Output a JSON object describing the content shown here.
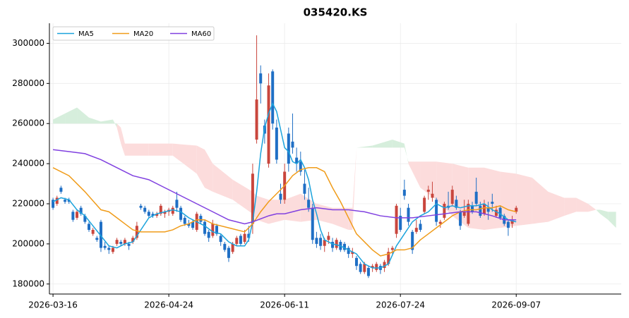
{
  "chart_data": {
    "type": "candlestick",
    "title": "035420.KS",
    "grid": true,
    "legend": "upper left",
    "xlim": [
      -0.9,
      142.3
    ],
    "xticks": [
      {
        "value": 0,
        "label": "2026-03-16"
      },
      {
        "value": 29,
        "label": "2026-04-24"
      },
      {
        "value": 58,
        "label": "2026-06-11"
      },
      {
        "value": 87,
        "label": "2026-07-24"
      },
      {
        "value": 116,
        "label": "2026-09-07"
      }
    ],
    "ylim": [
      175000,
      310000
    ],
    "yticks": [
      180000,
      200000,
      220000,
      240000,
      260000,
      280000,
      300000
    ],
    "up_color": "#c9463d",
    "down_color": "#1f6fc5",
    "candles": {
      "open": [
        222000,
        220000,
        228000,
        222000,
        222000,
        216000,
        213000,
        218000,
        214000,
        210000,
        205000,
        203000,
        211000,
        199000,
        198000,
        196000,
        200000,
        201000,
        200000,
        200000,
        201000,
        203000,
        219000,
        218000,
        216000,
        215000,
        214000,
        215000,
        215000,
        216000,
        215000,
        222000,
        218000,
        213000,
        210000,
        211000,
        207000,
        214000,
        211000,
        206000,
        204000,
        209000,
        204000,
        200000,
        198000,
        196000,
        200000,
        204000,
        201000,
        205000,
        210000,
        252000,
        285000,
        259000,
        240000,
        286000,
        258000,
        225000,
        222000,
        255000,
        251000,
        243000,
        241000,
        230000,
        222000,
        218000,
        203000,
        203000,
        199000,
        202000,
        201000,
        198000,
        201000,
        200000,
        198000,
        195000,
        193000,
        190000,
        186000,
        188000,
        188000,
        187000,
        189000,
        188000,
        190000,
        197000,
        205000,
        214000,
        227000,
        218000,
        206000,
        206000,
        210000,
        216000,
        226000,
        223000,
        222000,
        210000,
        213000,
        219000,
        220000,
        222000,
        216000,
        214000,
        210000,
        219000,
        226000,
        219000,
        215000,
        218000,
        221000,
        214000,
        218000,
        214000,
        211000,
        210000,
        216000
      ],
      "high": [
        223000,
        224000,
        229000,
        223000,
        223000,
        217000,
        217000,
        219000,
        215000,
        211000,
        208000,
        204000,
        212000,
        201000,
        199000,
        199000,
        203000,
        202000,
        203000,
        201000,
        204000,
        211000,
        220000,
        219000,
        217000,
        216000,
        216000,
        220000,
        217000,
        218000,
        219000,
        226000,
        219000,
        214000,
        212000,
        212000,
        216000,
        215000,
        212000,
        207000,
        212000,
        210000,
        205000,
        201000,
        199000,
        201000,
        204000,
        205000,
        207000,
        209000,
        240000,
        304000,
        289000,
        262000,
        285000,
        287000,
        262000,
        230000,
        240000,
        258000,
        265000,
        248000,
        246000,
        237000,
        228000,
        220000,
        206000,
        205000,
        203000,
        206000,
        203000,
        203000,
        202000,
        201000,
        199000,
        198000,
        194000,
        191000,
        191000,
        189000,
        190000,
        191000,
        190000,
        192000,
        198000,
        199000,
        220000,
        218000,
        232000,
        220000,
        207000,
        212000,
        212000,
        224000,
        229000,
        231000,
        223000,
        212000,
        221000,
        226000,
        229000,
        224000,
        217000,
        222000,
        222000,
        221000,
        233000,
        221000,
        222000,
        221000,
        225000,
        219000,
        219000,
        215000,
        212000,
        214000,
        219000
      ],
      "low": [
        217000,
        219000,
        225000,
        220000,
        220000,
        211000,
        212000,
        214000,
        210000,
        206000,
        204000,
        201000,
        196000,
        197000,
        195000,
        195000,
        199000,
        199000,
        199000,
        197000,
        200000,
        202000,
        217000,
        215000,
        213000,
        213000,
        213000,
        214000,
        213000,
        214000,
        214000,
        216000,
        211000,
        209000,
        208000,
        207000,
        206000,
        210000,
        204000,
        201000,
        203000,
        204000,
        199000,
        196000,
        191000,
        195000,
        199000,
        199000,
        200000,
        201000,
        205000,
        250000,
        270000,
        250000,
        238000,
        257000,
        240000,
        220000,
        220000,
        236000,
        245000,
        236000,
        234000,
        222000,
        216000,
        200000,
        198000,
        197000,
        196000,
        200000,
        196000,
        197000,
        196000,
        196000,
        193000,
        193000,
        187000,
        185000,
        185000,
        183000,
        186000,
        186000,
        185000,
        186000,
        189000,
        195000,
        203000,
        206000,
        222000,
        209000,
        195000,
        205000,
        206000,
        215000,
        222000,
        221000,
        209000,
        208000,
        212000,
        217000,
        219000,
        217000,
        207000,
        213000,
        209000,
        215000,
        219000,
        213000,
        214000,
        212000,
        216000,
        213000,
        212000,
        209000,
        204000,
        208000,
        215000
      ],
      "close": [
        218000,
        223000,
        226000,
        221000,
        221000,
        212000,
        216000,
        215000,
        211000,
        207000,
        207000,
        202000,
        198000,
        198000,
        197000,
        198000,
        202000,
        200000,
        202000,
        199000,
        203000,
        209000,
        218000,
        216000,
        214000,
        214000,
        215000,
        219000,
        216000,
        217000,
        218000,
        218000,
        212000,
        210000,
        209000,
        208000,
        215000,
        211000,
        205000,
        203000,
        210000,
        205000,
        201000,
        197000,
        193000,
        200000,
        203000,
        200000,
        205000,
        203000,
        235000,
        272000,
        280000,
        255000,
        279000,
        260000,
        242000,
        222000,
        236000,
        240000,
        248000,
        240000,
        236000,
        225000,
        218000,
        202000,
        200000,
        199000,
        202000,
        204000,
        198000,
        202000,
        197000,
        197000,
        195000,
        196000,
        189000,
        186000,
        190000,
        184000,
        189000,
        190000,
        187000,
        191000,
        196000,
        198000,
        219000,
        207000,
        224000,
        211000,
        197000,
        208000,
        207000,
        223000,
        227000,
        225000,
        211000,
        211000,
        220000,
        218000,
        227000,
        218000,
        209000,
        216000,
        220000,
        216000,
        220000,
        214000,
        220000,
        216000,
        220000,
        217000,
        213000,
        210000,
        208000,
        212000,
        218000
      ]
    },
    "series": [
      {
        "name": "MA5",
        "color": "#1ba3dc",
        "x": [
          0,
          2,
          4,
          6,
          8,
          10,
          12,
          14,
          16,
          18,
          20,
          22,
          24,
          26,
          28,
          30,
          32,
          34,
          36,
          38,
          40,
          42,
          44,
          46,
          48,
          49,
          50,
          51,
          52,
          53,
          54,
          55,
          56,
          57,
          58,
          59,
          60,
          61,
          62,
          63,
          64,
          65,
          66,
          67,
          68,
          70,
          72,
          74,
          76,
          78,
          80,
          82,
          84,
          86,
          88,
          90,
          92,
          94,
          96,
          98,
          100,
          102,
          104,
          106,
          108,
          110,
          112,
          114,
          116
        ],
        "values": [
          221000,
          223000,
          222000,
          217000,
          214000,
          209000,
          204000,
          199000,
          198000,
          200000,
          201000,
          207000,
          213000,
          215000,
          216000,
          217000,
          216000,
          213000,
          211000,
          209000,
          206000,
          205000,
          201000,
          199000,
          199000,
          202000,
          211000,
          226000,
          245000,
          258000,
          265000,
          270000,
          266000,
          257000,
          248000,
          246000,
          241000,
          240000,
          242000,
          238000,
          232000,
          222000,
          215000,
          207000,
          202000,
          200000,
          199000,
          197000,
          195000,
          190000,
          188000,
          188000,
          190000,
          199000,
          205000,
          211000,
          214000,
          216000,
          220000,
          218000,
          219000,
          218000,
          219000,
          219000,
          220000,
          217000,
          215000,
          212000,
          211000
        ]
      },
      {
        "name": "MA20",
        "color": "#f09c1a",
        "x": [
          0,
          4,
          8,
          12,
          14,
          16,
          18,
          20,
          22,
          26,
          28,
          30,
          32,
          34,
          36,
          38,
          40,
          44,
          48,
          50,
          52,
          54,
          56,
          58,
          60,
          62,
          64,
          66,
          68,
          70,
          72,
          74,
          76,
          78,
          80,
          82,
          84,
          86,
          88,
          90,
          92,
          94,
          96,
          98,
          100,
          102,
          104,
          106,
          108,
          110,
          112,
          114,
          116
        ],
        "values": [
          238000,
          234000,
          226000,
          217000,
          216000,
          213000,
          210000,
          207000,
          206000,
          206000,
          206000,
          207000,
          209000,
          210000,
          212000,
          212000,
          210000,
          208000,
          206000,
          210000,
          216000,
          221000,
          225000,
          229000,
          234000,
          237000,
          238000,
          238000,
          236000,
          228000,
          221000,
          213000,
          205000,
          201000,
          197000,
          194000,
          195000,
          197000,
          197000,
          198000,
          202000,
          205000,
          208000,
          211000,
          214000,
          216000,
          217000,
          217000,
          218000,
          218000,
          219000,
          217000,
          216000
        ]
      },
      {
        "name": "MA60",
        "color": "#8040e0",
        "x": [
          0,
          4,
          8,
          12,
          16,
          20,
          24,
          28,
          32,
          36,
          40,
          44,
          48,
          50,
          54,
          56,
          58,
          62,
          66,
          70,
          74,
          78,
          82,
          86,
          90,
          94,
          98,
          102,
          106,
          110,
          113,
          116
        ],
        "values": [
          247000,
          246000,
          245000,
          242000,
          238000,
          234000,
          232000,
          228000,
          224000,
          220000,
          216000,
          212000,
          210000,
          211000,
          214000,
          215000,
          215000,
          217000,
          218000,
          217000,
          217000,
          216000,
          214000,
          213000,
          213000,
          214000,
          215000,
          216000,
          216000,
          214000,
          212000,
          212000
        ]
      }
    ],
    "cloud": {
      "bull_color": "#d6eedc",
      "bear_color": "#fcdcdc",
      "x": [
        0,
        3,
        6,
        9,
        12,
        15,
        16,
        17,
        18,
        24,
        30,
        36,
        38,
        40,
        45,
        50,
        51,
        54,
        58,
        62,
        66,
        70,
        74,
        75,
        76,
        80,
        85,
        88,
        89,
        92,
        96,
        100,
        104,
        108,
        112,
        116,
        120,
        124,
        128,
        131,
        134,
        136,
        137,
        139,
        141
      ],
      "span_a": [
        262000,
        265000,
        268000,
        263000,
        261000,
        262000,
        258000,
        250000,
        244000,
        244000,
        244000,
        235000,
        228000,
        226000,
        222000,
        215000,
        212000,
        210000,
        212000,
        211000,
        212000,
        210000,
        207000,
        207000,
        248000,
        249000,
        252000,
        250000,
        240000,
        228000,
        222000,
        214000,
        208000,
        207000,
        208000,
        209000,
        210000,
        211000,
        214000,
        216000,
        216000,
        217000,
        217000,
        216000,
        216000
      ],
      "span_b": [
        260000,
        260000,
        260000,
        260000,
        260000,
        260000,
        260000,
        258000,
        250000,
        250000,
        250000,
        249000,
        247000,
        240000,
        232000,
        226000,
        224000,
        222000,
        222000,
        225000,
        220000,
        218000,
        218000,
        218000,
        248000,
        248000,
        248000,
        248000,
        241000,
        241000,
        241000,
        240000,
        238000,
        238000,
        236000,
        235000,
        233000,
        226000,
        223000,
        223000,
        220000,
        217000,
        215000,
        212000,
        208000
      ]
    }
  }
}
